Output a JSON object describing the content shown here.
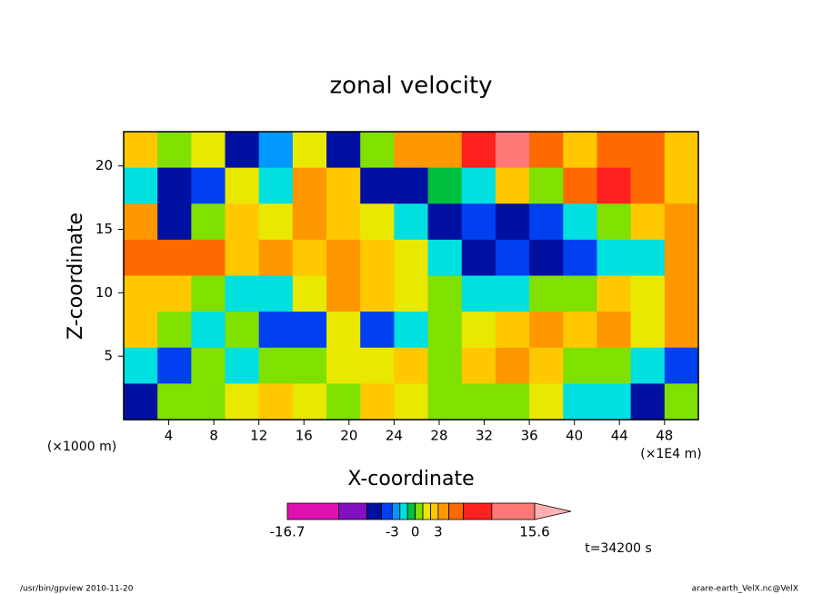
{
  "chart_data": {
    "type": "heatmap",
    "title": "zonal velocity",
    "x_label": "X-coordinate",
    "y_label": "Z-coordinate",
    "x_unit": "(×1E4 m)",
    "y_unit": "(×1000 m)",
    "time_label": "t=34200 s",
    "footer_left": "/usr/bin/gpview   2010-11-20",
    "footer_right": "arare-earth_VelX.nc@VelX",
    "xlim": [
      0,
      51
    ],
    "ylim": [
      0,
      22.7
    ],
    "xticks": [
      4,
      8,
      12,
      16,
      20,
      24,
      28,
      32,
      36,
      40,
      44,
      48
    ],
    "yticks": [
      5,
      10,
      15,
      20
    ],
    "values_top_to_bottom": [
      [
        2,
        0.5,
        1.5,
        -6,
        -3,
        1.5,
        -6,
        0,
        3,
        4,
        8,
        10,
        5,
        2,
        5,
        5,
        2
      ],
      [
        -2,
        -5,
        -4,
        1.5,
        -1.5,
        3,
        2,
        -5,
        -5,
        -0.5,
        -2,
        2,
        0,
        5,
        7,
        5,
        2
      ],
      [
        4,
        -5,
        0,
        2,
        1.5,
        3,
        2,
        1.5,
        -2,
        -5,
        -4,
        -5,
        -4,
        -2,
        0,
        2,
        4
      ],
      [
        5,
        5,
        5,
        2,
        4,
        2,
        4,
        2,
        1.5,
        -2,
        -5,
        -4,
        -5,
        -3.5,
        -2,
        -1.5,
        4
      ],
      [
        2,
        2,
        0,
        -2,
        -2,
        1.5,
        3,
        2,
        1,
        0,
        -2,
        -1.5,
        0,
        0.5,
        2,
        1.5,
        4
      ],
      [
        2,
        0,
        -2,
        0,
        -4,
        -3.5,
        1.5,
        -4,
        -2,
        0.5,
        1.5,
        2,
        3,
        2,
        3,
        1.5,
        4
      ],
      [
        -2,
        -3.5,
        0,
        -1.5,
        0,
        0.5,
        1.5,
        1,
        2,
        0,
        2,
        3,
        2,
        0.5,
        0,
        -2,
        -3.5
      ],
      [
        -5,
        0,
        0.5,
        1.5,
        2,
        1.5,
        0,
        2,
        1.5,
        0,
        0.5,
        0,
        1.5,
        -2,
        -1.5,
        -5,
        0.5
      ]
    ],
    "levels": [
      -16.7,
      -10,
      -6.3,
      -4.4,
      -3,
      -2,
      -1,
      0,
      1,
      2,
      3,
      4.4,
      6.3,
      10,
      15.6
    ],
    "colors": [
      "#e010b0",
      "#8010c0",
      "#0010a0",
      "#0040f0",
      "#0098ff",
      "#00e0e0",
      "#00c040",
      "#80e000",
      "#e8e800",
      "#ffc800",
      "#ff9800",
      "#ff6a00",
      "#ff2020",
      "#ff7878"
    ],
    "over_color": "#ffb0b0",
    "colorbar_labels": [
      -16.7,
      -3,
      0,
      3,
      15.6
    ]
  }
}
